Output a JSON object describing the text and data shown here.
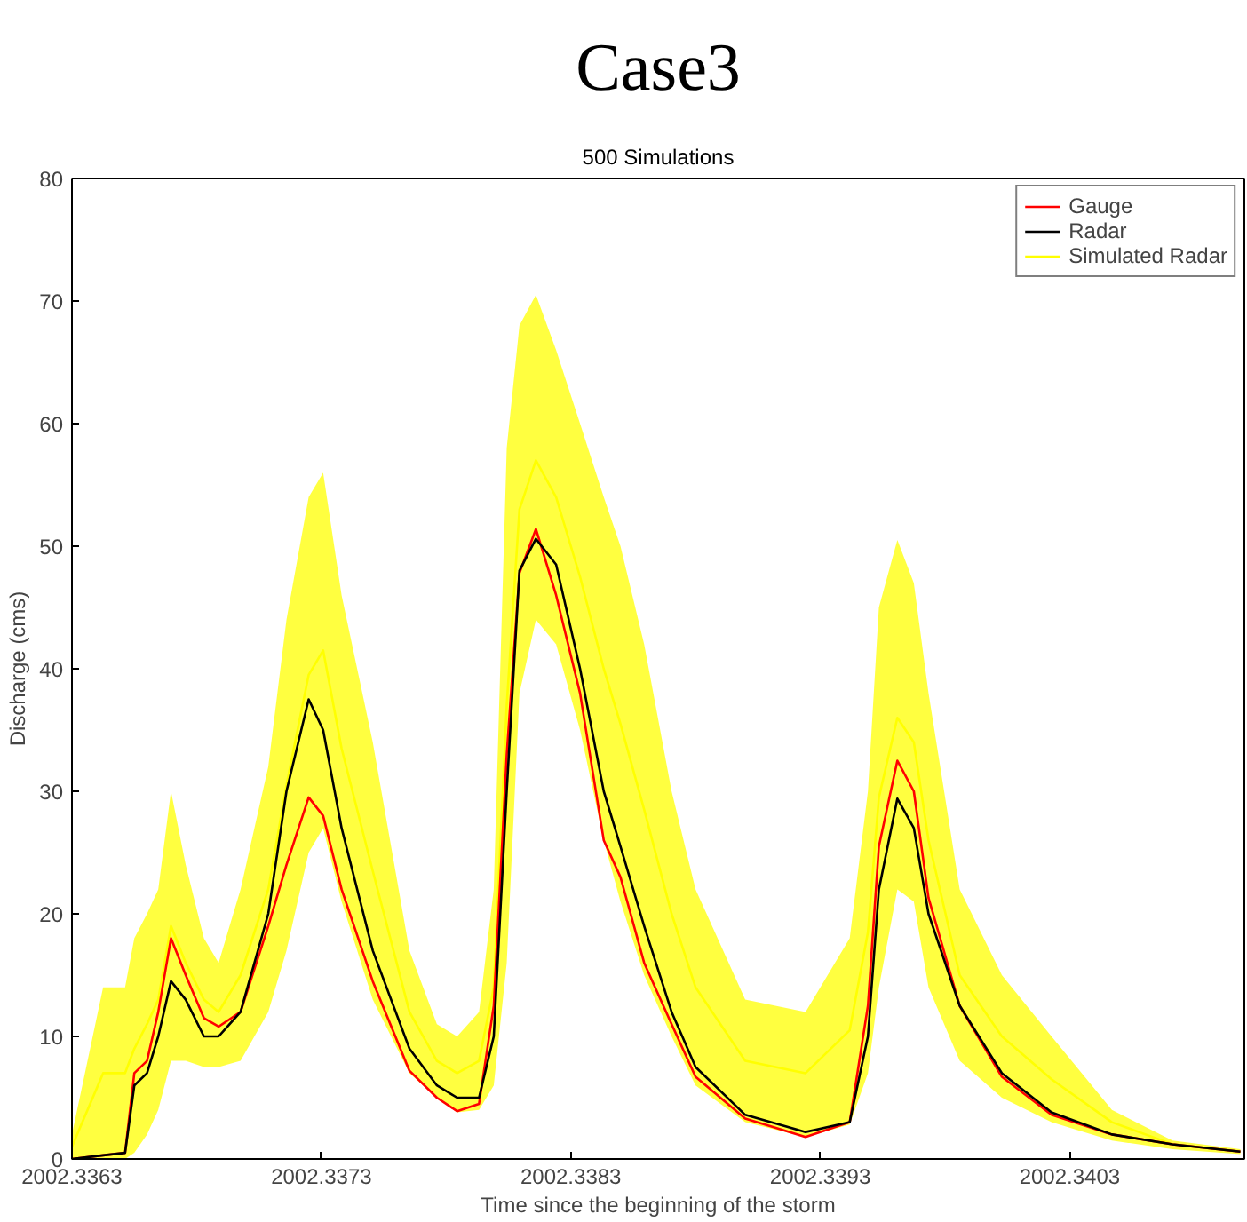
{
  "chart_data": {
    "type": "line",
    "title": "Case3",
    "subtitle": "500 Simulations",
    "xlabel": "Time since the beginning of the storm",
    "ylabel": "Discharge (cms)",
    "x": [
      2002.3363,
      2002.336425,
      2002.336513,
      2002.33655,
      2002.336601,
      2002.336646,
      2002.336697,
      2002.336756,
      2002.336829,
      2002.336888,
      2002.336976,
      2002.337087,
      2002.33716,
      2002.337249,
      2002.337307,
      2002.337381,
      2002.337506,
      2002.337653,
      2002.337763,
      2002.337844,
      2002.337932,
      2002.337991,
      2002.338043,
      2002.338094,
      2002.33816,
      2002.338241,
      2002.338337,
      2002.338432,
      2002.338499,
      2002.338594,
      2002.338704,
      2002.3388,
      2002.338999,
      2002.339241,
      2002.339418,
      2002.339491,
      2002.339535,
      2002.339609,
      2002.339675,
      2002.339734,
      2002.339859,
      2002.340028,
      2002.340227,
      2002.340469,
      2002.340712,
      2002.340984
    ],
    "series": [
      {
        "name": "Simulated Radar",
        "type": "line",
        "color": "#ffff00",
        "values": [
          1,
          7,
          7,
          9,
          11,
          13,
          19,
          16,
          13,
          12,
          15,
          22,
          30.5,
          39.5,
          41.5,
          33.5,
          23.5,
          12,
          8,
          7,
          8,
          14,
          37,
          53,
          57,
          54,
          47.5,
          40,
          35.5,
          28.5,
          20,
          14,
          8,
          7,
          10.5,
          18.5,
          29.5,
          36,
          34,
          26,
          15,
          10,
          6.5,
          3,
          1.2,
          0.6
        ],
        "lower": [
          0,
          0,
          0,
          0.5,
          2,
          4,
          8,
          8,
          7.5,
          7.5,
          8,
          12,
          17,
          25,
          27,
          21,
          13,
          7,
          5,
          3.8,
          4,
          6,
          16,
          38,
          44,
          42,
          35,
          26,
          21,
          15,
          10,
          6,
          3,
          1.8,
          2.8,
          7,
          14,
          22,
          21,
          14,
          8,
          5,
          3,
          1.5,
          0.8,
          0.4
        ],
        "upper": [
          2,
          14,
          14,
          18,
          20,
          22,
          30,
          24,
          18,
          16,
          22,
          32,
          44,
          54,
          56,
          46,
          34,
          17,
          11,
          10,
          12,
          22,
          58,
          68,
          70.5,
          66,
          60,
          54,
          50,
          42,
          30,
          22,
          13,
          12,
          18,
          30,
          45,
          50.5,
          47,
          38,
          22,
          15,
          10,
          4,
          1.5,
          0.8
        ]
      },
      {
        "name": "Gauge",
        "color": "#ff0000",
        "values": [
          0,
          0.3,
          0.5,
          7,
          8,
          12,
          18,
          15,
          11.5,
          10.8,
          12,
          19,
          24,
          29.5,
          28,
          22,
          14.5,
          7.2,
          5,
          3.9,
          4.5,
          12.5,
          33,
          47.8,
          51.4,
          46,
          38,
          26,
          23,
          16,
          11,
          6.7,
          3.3,
          1.8,
          3,
          12.5,
          25.5,
          32.5,
          30,
          21.3,
          12.5,
          6.7,
          3.6,
          2,
          1.2,
          0.6
        ]
      },
      {
        "name": "Radar",
        "color": "#000000",
        "values": [
          0,
          0.3,
          0.5,
          6,
          7,
          10,
          14.5,
          13,
          10,
          10,
          12,
          20,
          30,
          37.5,
          35,
          27,
          17,
          9,
          6,
          5,
          5,
          10,
          30,
          48,
          50.6,
          48.5,
          40,
          30,
          25.5,
          19,
          12,
          7.5,
          3.6,
          2.2,
          3,
          10,
          22,
          29.4,
          27,
          20,
          12.5,
          7,
          3.8,
          2,
          1.2,
          0.6
        ]
      }
    ],
    "xlim": [
      2002.3363,
      2002.341
    ],
    "xticks": [
      {
        "value": 2002.3363,
        "label": "2002.3363"
      },
      {
        "value": 2002.3373,
        "label": "2002.3373"
      },
      {
        "value": 2002.3383,
        "label": "2002.3383"
      },
      {
        "value": 2002.3393,
        "label": "2002.3393"
      },
      {
        "value": 2002.3403,
        "label": "2002.3403"
      }
    ],
    "ylim": [
      0,
      80
    ],
    "yticks": [
      0,
      10,
      20,
      30,
      40,
      50,
      60,
      70,
      80
    ],
    "legend": "top right",
    "grid": false,
    "line_style": "solid",
    "marker": "none"
  }
}
